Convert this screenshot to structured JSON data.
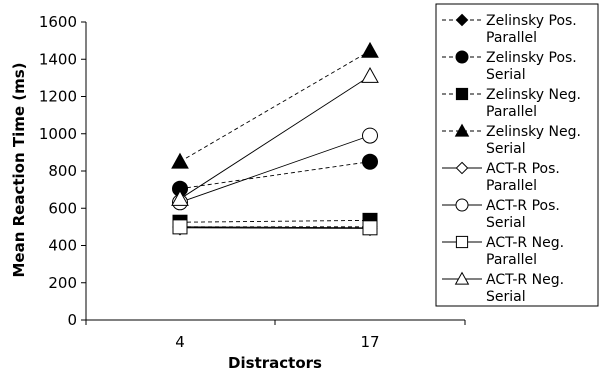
{
  "chart_data": {
    "type": "line",
    "title": "",
    "xlabel": "Distractors",
    "ylabel": "Mean Reaction Time (ms)",
    "categories": [
      "4",
      "17"
    ],
    "ylim": [
      0,
      1600
    ],
    "yticks": [
      0,
      200,
      400,
      600,
      800,
      1000,
      1200,
      1400,
      1600
    ],
    "grid": false,
    "legend_position": "right",
    "series": [
      {
        "name": "Zelinsky Pos. Parallel",
        "name_lines": [
          "Zelinsky Pos.",
          "Parallel"
        ],
        "values": [
          500,
          500
        ],
        "marker": "diamond",
        "filled": true,
        "dashed": true
      },
      {
        "name": "Zelinsky Pos. Serial",
        "name_lines": [
          "Zelinsky Pos.",
          "Serial"
        ],
        "values": [
          705,
          850
        ],
        "marker": "circle",
        "filled": true,
        "dashed": true
      },
      {
        "name": "Zelinsky Neg. Parallel",
        "name_lines": [
          "Zelinsky Neg.",
          "Parallel"
        ],
        "values": [
          525,
          535
        ],
        "marker": "square",
        "filled": true,
        "dashed": true
      },
      {
        "name": "Zelinsky Neg. Serial",
        "name_lines": [
          "Zelinsky Neg.",
          "Serial"
        ],
        "values": [
          850,
          1445
        ],
        "marker": "triangle",
        "filled": true,
        "dashed": true
      },
      {
        "name": "ACT-R Pos. Parallel",
        "name_lines": [
          "ACT-R Pos.",
          "Parallel"
        ],
        "values": [
          495,
          492
        ],
        "marker": "diamond",
        "filled": false,
        "dashed": false
      },
      {
        "name": "ACT-R Pos. Serial",
        "name_lines": [
          "ACT-R Pos.",
          "Serial"
        ],
        "values": [
          632,
          990
        ],
        "marker": "circle",
        "filled": false,
        "dashed": false
      },
      {
        "name": "ACT-R Neg. Parallel",
        "name_lines": [
          "ACT-R Neg.",
          "Parallel"
        ],
        "values": [
          500,
          495
        ],
        "marker": "square",
        "filled": false,
        "dashed": false
      },
      {
        "name": "ACT-R Neg. Serial",
        "name_lines": [
          "ACT-R Neg.",
          "Serial"
        ],
        "values": [
          650,
          1310
        ],
        "marker": "triangle",
        "filled": false,
        "dashed": false
      }
    ]
  }
}
